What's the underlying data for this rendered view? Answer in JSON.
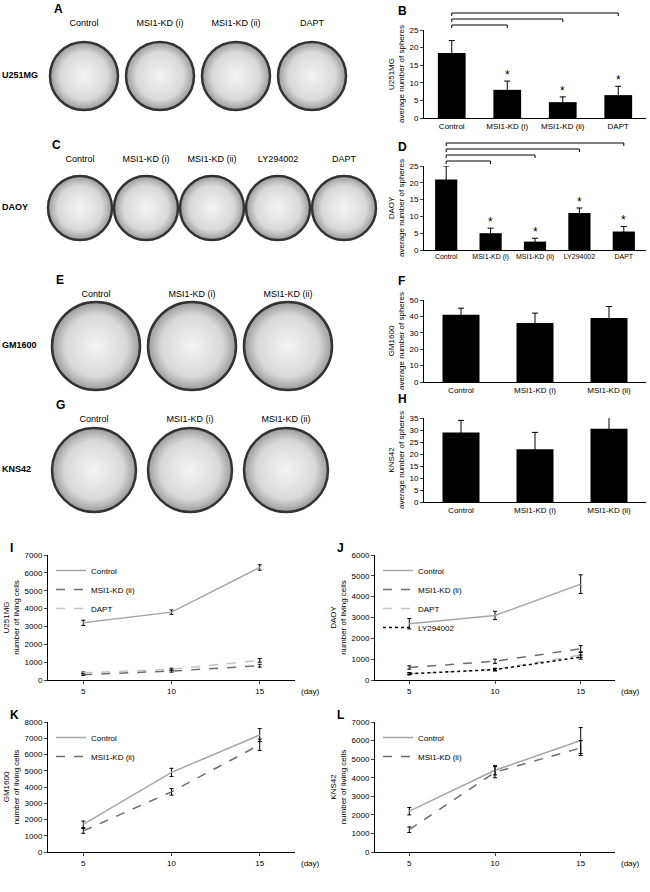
{
  "chart_data": [
    {
      "type": "photo",
      "title": "A",
      "ylabel": "U251MG",
      "categories": [
        "Control",
        "MSI1-KD (i)",
        "MSI1-KD (ii)",
        "DAPT"
      ]
    },
    {
      "type": "bar",
      "title": "B",
      "ylabel": "U251MG\naverage number of spheres",
      "categories": [
        "Control",
        "MSI1-KD (i)",
        "MSI1-KD (ii)",
        "DAPT"
      ],
      "values": [
        18.5,
        8,
        4.5,
        6.5
      ],
      "errors": [
        3.5,
        2.5,
        1.5,
        2.5
      ],
      "color": "#000000",
      "ylim": [
        0,
        25
      ],
      "yticks": [
        0,
        5,
        10,
        15,
        20,
        25
      ],
      "annotations": [
        {
          "category": "MSI1-KD (i)",
          "text": "*"
        },
        {
          "category": "MSI1-KD (ii)",
          "text": "*"
        },
        {
          "category": "DAPT",
          "text": "*"
        }
      ]
    },
    {
      "type": "photo",
      "title": "C",
      "ylabel": "DAOY",
      "categories": [
        "Control",
        "MSI1-KD (i)",
        "MSI1-KD (ii)",
        "LY294002",
        "DAPT"
      ]
    },
    {
      "type": "bar",
      "title": "D",
      "ylabel": "DAOY\naverage number of spheres",
      "categories": [
        "Control",
        "MSI1-KD (i)",
        "MSI1-KD (ii)",
        "LY294002",
        "DAPT"
      ],
      "values": [
        21,
        5,
        2.5,
        11,
        5.5
      ],
      "errors": [
        4,
        1.5,
        1,
        1.5,
        1.5
      ],
      "color": "#000000",
      "ylim": [
        0,
        25
      ],
      "yticks": [
        0,
        5,
        10,
        15,
        20,
        25
      ],
      "annotations": [
        {
          "category": "MSI1-KD (i)",
          "text": "*"
        },
        {
          "category": "MSI1-KD (ii)",
          "text": "*"
        },
        {
          "category": "LY294002",
          "text": "*"
        },
        {
          "category": "DAPT",
          "text": "*"
        }
      ]
    },
    {
      "type": "photo",
      "title": "E",
      "ylabel": "GM1600",
      "categories": [
        "Control",
        "MSI1-KD (i)",
        "MSI1-KD (ii)"
      ]
    },
    {
      "type": "bar",
      "title": "F",
      "ylabel": "GM1600\naverage number of spheres",
      "categories": [
        "Control",
        "MSI1-KD (i)",
        "MSI1-KD (ii)"
      ],
      "values": [
        41,
        36,
        39
      ],
      "errors": [
        4,
        6,
        7
      ],
      "color": "#000000",
      "ylim": [
        0,
        50
      ],
      "yticks": [
        0,
        10,
        20,
        30,
        40,
        50
      ]
    },
    {
      "type": "photo",
      "title": "G",
      "ylabel": "KNS42",
      "categories": [
        "Control",
        "MSI1-KD (i)",
        "MSI1-KD (ii)"
      ]
    },
    {
      "type": "bar",
      "title": "H",
      "ylabel": "KNS42\naverage number of spheres",
      "categories": [
        "Control",
        "MSI1-KD (i)",
        "MSI1-KD (ii)"
      ],
      "values": [
        29,
        22,
        30.5
      ],
      "errors": [
        5,
        7,
        5
      ],
      "color": "#000000",
      "ylim": [
        0,
        35
      ],
      "yticks": [
        0,
        5,
        10,
        15,
        20,
        25,
        30,
        35
      ]
    },
    {
      "type": "line",
      "title": "I",
      "ylabel": "U251MG\nnumber of living cells",
      "xlabel": "(day)",
      "x": [
        5,
        10,
        15
      ],
      "xlim": [
        3,
        17
      ],
      "xticks": [
        5,
        10,
        15
      ],
      "ylim": [
        0,
        7000
      ],
      "yticks": [
        0,
        1000,
        2000,
        3000,
        4000,
        5000,
        6000,
        7000
      ],
      "legend": "upper left",
      "series": [
        {
          "name": "Control",
          "color": "#a6a6a6",
          "line_style": "solid",
          "values": [
            3200,
            3800,
            6300
          ],
          "errors": [
            150,
            120,
            150
          ]
        },
        {
          "name": "MSI1-KD (ii)",
          "color": "#6e6e6e",
          "line_style": "dashed",
          "values": [
            300,
            500,
            800
          ],
          "errors": [
            50,
            60,
            80
          ]
        },
        {
          "name": "DAPT",
          "color": "#c4c4c4",
          "line_style": "dashed",
          "values": [
            400,
            600,
            1100
          ],
          "errors": [
            50,
            60,
            100
          ]
        }
      ]
    },
    {
      "type": "line",
      "title": "J",
      "ylabel": "DAOY\nnumber of living cells",
      "xlabel": "(day)",
      "x": [
        5,
        10,
        15
      ],
      "xlim": [
        3,
        17
      ],
      "xticks": [
        5,
        10,
        15
      ],
      "ylim": [
        0,
        6000
      ],
      "yticks": [
        0,
        1000,
        2000,
        3000,
        4000,
        5000,
        6000
      ],
      "legend": "upper left",
      "series": [
        {
          "name": "Control",
          "color": "#a6a6a6",
          "line_style": "solid",
          "values": [
            2700,
            3100,
            4600
          ],
          "errors": [
            250,
            200,
            450
          ]
        },
        {
          "name": "MSI1-KD (ii)",
          "color": "#6e6e6e",
          "line_style": "dashed",
          "values": [
            600,
            900,
            1500
          ],
          "errors": [
            80,
            100,
            150
          ]
        },
        {
          "name": "DAPT",
          "color": "#c4c4c4",
          "line_style": "dashed",
          "values": [
            300,
            500,
            1200
          ],
          "errors": [
            50,
            60,
            120
          ]
        },
        {
          "name": "LY294002",
          "color": "#000000",
          "line_style": "dotted",
          "values": [
            300,
            500,
            1100
          ],
          "errors": [
            50,
            60,
            100
          ]
        }
      ]
    },
    {
      "type": "line",
      "title": "K",
      "ylabel": "GM1600\nnumber of living cells",
      "xlabel": "(day)",
      "x": [
        5,
        10,
        15
      ],
      "xlim": [
        3,
        17
      ],
      "xticks": [
        5,
        10,
        15
      ],
      "ylim": [
        0,
        8000
      ],
      "yticks": [
        0,
        1000,
        2000,
        3000,
        4000,
        5000,
        6000,
        7000,
        8000
      ],
      "legend": "upper left",
      "series": [
        {
          "name": "Control",
          "color": "#a6a6a6",
          "line_style": "solid",
          "values": [
            1700,
            4900,
            7200
          ],
          "errors": [
            200,
            250,
            400
          ]
        },
        {
          "name": "MSI1-KD (ii)",
          "color": "#6e6e6e",
          "line_style": "dashed",
          "values": [
            1300,
            3700,
            6600
          ],
          "errors": [
            150,
            200,
            350
          ]
        }
      ]
    },
    {
      "type": "line",
      "title": "L",
      "ylabel": "KNS42\nnumber of living cells",
      "xlabel": "(day)",
      "x": [
        5,
        10,
        15
      ],
      "xlim": [
        3,
        17
      ],
      "xticks": [
        5,
        10,
        15
      ],
      "ylim": [
        0,
        7000
      ],
      "yticks": [
        0,
        1000,
        2000,
        3000,
        4000,
        5000,
        6000,
        7000
      ],
      "legend": "upper left",
      "series": [
        {
          "name": "Control",
          "color": "#a6a6a6",
          "line_style": "solid",
          "values": [
            2200,
            4400,
            6000
          ],
          "errors": [
            200,
            250,
            700
          ]
        },
        {
          "name": "MSI1-KD (ii)",
          "color": "#6e6e6e",
          "line_style": "dashed",
          "values": [
            1200,
            4300,
            5600
          ],
          "errors": [
            150,
            300,
            400
          ]
        }
      ]
    }
  ]
}
